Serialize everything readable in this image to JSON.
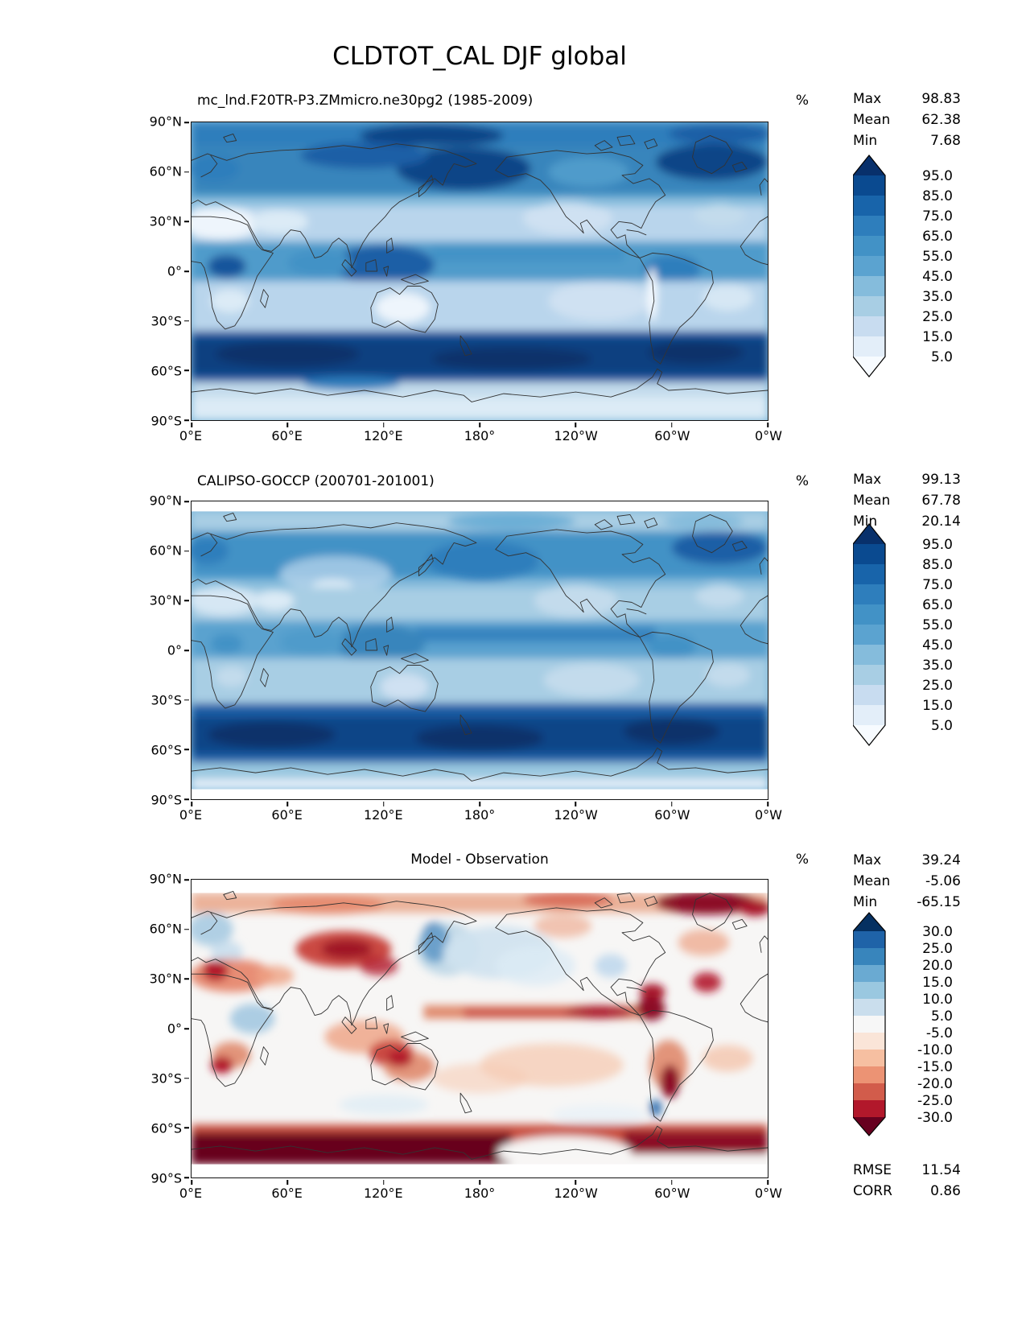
{
  "figure_title": "CLDTOT_CAL DJF global",
  "labels": {
    "max": "Max",
    "mean": "Mean",
    "min": "Min",
    "rmse": "RMSE",
    "corr": "CORR"
  },
  "axes": {
    "x_ticks": [
      "0°E",
      "60°E",
      "120°E",
      "180°",
      "120°W",
      "60°W",
      "0°W"
    ],
    "y_ticks": [
      "90°N",
      "60°N",
      "30°N",
      "0°",
      "30°S",
      "60°S",
      "90°S"
    ]
  },
  "chart_data": [
    {
      "type": "heatmap",
      "projection": "global lat-lon map, filled contours",
      "title": "mc_lnd.F20TR-P3.ZMmicro.ne30pg2 (1985-2009)",
      "units": "%",
      "colormap": "Blues",
      "stats": {
        "max": "98.83",
        "mean": "62.38",
        "min": "7.68"
      },
      "colorbar": {
        "tick_labels": [
          "95.0",
          "85.0",
          "75.0",
          "65.0",
          "55.0",
          "45.0",
          "35.0",
          "25.0",
          "15.0",
          "5.0"
        ],
        "colors": [
          "#08306b",
          "#0a4a90",
          "#1864aa",
          "#2e7ebc",
          "#4292c6",
          "#5ba3d0",
          "#85bcdc",
          "#a8cee4",
          "#c8dcf0",
          "#e3eef9",
          "#f7fbff"
        ],
        "extend": "both"
      },
      "xlim": [
        "0°E",
        "0°W"
      ],
      "ylim": [
        "90°S",
        "90°N"
      ],
      "description": "Total cloud fraction from model: dark blue (>85%) over Arctic, N Pacific and N Atlantic storm tracks and 45-70S Southern Ocean band; light (<35%) over Sahara, Australia, subtropical oceans"
    },
    {
      "type": "heatmap",
      "projection": "global lat-lon map, filled contours",
      "title": "CALIPSO-GOCCP (200701-201001)",
      "units": "%",
      "colormap": "Blues",
      "stats": {
        "max": "99.13",
        "mean": "67.78",
        "min": "20.14"
      },
      "colorbar": {
        "tick_labels": [
          "95.0",
          "85.0",
          "75.0",
          "65.0",
          "55.0",
          "45.0",
          "35.0",
          "25.0",
          "15.0",
          "5.0"
        ],
        "colors": [
          "#08306b",
          "#0a4a90",
          "#1864aa",
          "#2e7ebc",
          "#4292c6",
          "#5ba3d0",
          "#85bcdc",
          "#a8cee4",
          "#c8dcf0",
          "#e3eef9",
          "#f7fbff"
        ],
        "extend": "both"
      },
      "xlim": [
        "0°E",
        "0°W"
      ],
      "ylim": [
        "90°S",
        "90°N"
      ],
      "description": "Observed total cloud fraction: similar zonal structure, overall cloudier; dark Southern Ocean band, moderate subtropical minima"
    },
    {
      "type": "heatmap",
      "projection": "global lat-lon map, filled contours",
      "title": "Model - Observation",
      "units": "%",
      "colormap": "RdBu",
      "stats": {
        "max": "39.24",
        "mean": "-5.06",
        "min": "-65.15"
      },
      "extra_stats": {
        "rmse": "11.54",
        "corr": "0.86"
      },
      "colorbar": {
        "tick_labels": [
          "30.0",
          "25.0",
          "20.0",
          "15.0",
          "10.0",
          "5.0",
          "-5.0",
          "-10.0",
          "-15.0",
          "-20.0",
          "-25.0",
          "-30.0"
        ],
        "colors": [
          "#053061",
          "#1f63a8",
          "#3885bc",
          "#6aaad2",
          "#9ac8e0",
          "#cadeed",
          "#f7f7f7",
          "#fae5d8",
          "#f6bfa1",
          "#ec9374",
          "#d25c4b",
          "#b2182b",
          "#67001f"
        ],
        "extend": "both"
      },
      "xlim": [
        "0°E",
        "0°W"
      ],
      "ylim": [
        "90°S",
        "90°N"
      ],
      "description": "Model minus observation bias: strong negative (dark red) band along Antarctic coast, negative over central Asia, Sahara, Australia, ITCZ and S. America; positive (blue) over Sea of Okhotsk, N Pacific and parts of Europe"
    }
  ]
}
